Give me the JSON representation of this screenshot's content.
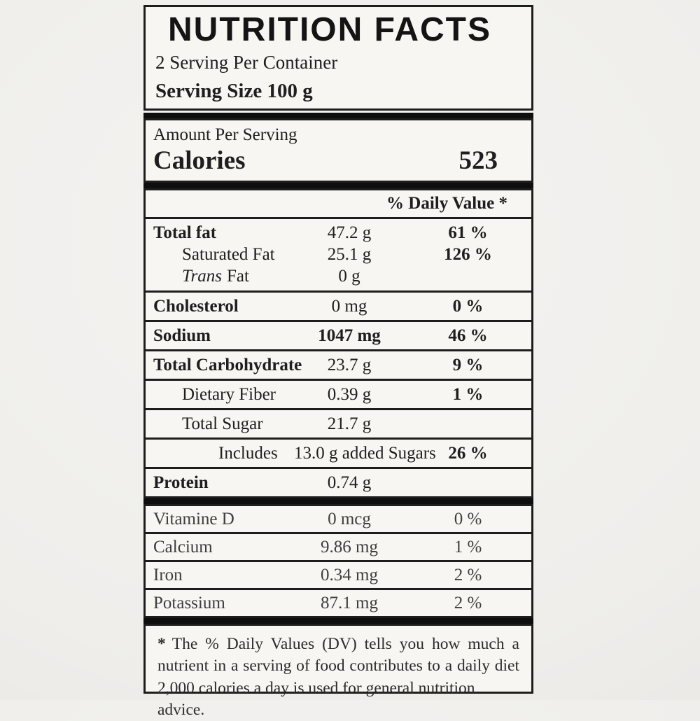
{
  "label": {
    "title": "NUTRITION FACTS",
    "servings_per_container": "2 Serving Per Container",
    "serving_size": "Serving Size 100 g",
    "amount_per_serving": "Amount Per Serving",
    "calories_label": "Calories",
    "calories_value": "523",
    "daily_value_header": "% Daily Value *",
    "nutrients": [
      {
        "label": "Total fat",
        "amount": "47.2 g",
        "dv": "61 %"
      },
      {
        "label": "Saturated Fat",
        "amount": "25.1 g",
        "dv": "126 %"
      },
      {
        "label_italic": "Trans",
        "label": "Fat",
        "amount": "0 g",
        "dv": ""
      },
      {
        "label": "Cholesterol",
        "amount": "0 mg",
        "dv": "0 %"
      },
      {
        "label": "Sodium",
        "amount": "1047 mg",
        "dv": "46 %"
      },
      {
        "label": "Total Carbohydrate",
        "amount": "23.7 g",
        "dv": "9 %"
      },
      {
        "label": "Dietary Fiber",
        "amount": "0.39 g",
        "dv": "1 %"
      },
      {
        "label": "Total Sugar",
        "amount": "21.7 g",
        "dv": ""
      },
      {
        "label": "Includes",
        "amount": "13.0 g added Sugars",
        "dv": "26 %"
      },
      {
        "label": "Protein",
        "amount": "0.74 g",
        "dv": ""
      },
      {
        "label": "Vitamine D",
        "amount": "0 mcg",
        "dv": "0 %"
      },
      {
        "label": "Calcium",
        "amount": "9.86 mg",
        "dv": "1 %"
      },
      {
        "label": "Iron",
        "amount": "0.34 mg",
        "dv": "2 %"
      },
      {
        "label": "Potassium",
        "amount": "87.1 mg",
        "dv": "2 %"
      }
    ],
    "footnote": {
      "star": "*",
      "line1": "The % Daily Values (DV) tells you how much a",
      "line2": "nutrient in a serving of food contributes to a daily diet",
      "line3": "2,000 calories a day is used for general nutrition advice."
    }
  },
  "colors": {
    "ink": "#1d1d1d",
    "label_bg": "#f7f6f3",
    "page_bg": "#edecea"
  }
}
